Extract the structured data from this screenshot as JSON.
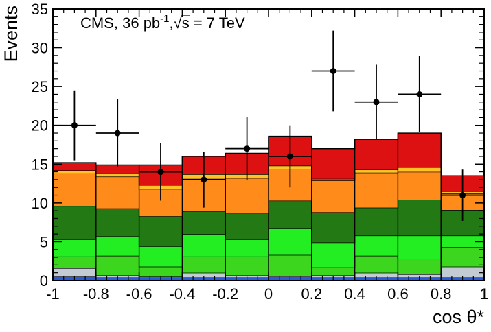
{
  "chart_data": {
    "type": "bar",
    "subtype": "stacked-histogram-with-data-points",
    "xlabel": "cos θ*",
    "ylabel": "Events",
    "annotation": {
      "prefix": "CMS, 36 pb",
      "superscript": "-1",
      "separator": ",",
      "sqrt_symbol": "√",
      "sqrt_arg": "s",
      "suffix": " = 7 TeV"
    },
    "xlim": [
      -1,
      1
    ],
    "ylim": [
      0,
      35
    ],
    "x_ticks": [
      "-1",
      "-0.8",
      "-0.6",
      "-0.4",
      "-0.2",
      "0",
      "0.2",
      "0.4",
      "0.6",
      "0.8",
      "1"
    ],
    "y_ticks": [
      "0",
      "5",
      "10",
      "15",
      "20",
      "25",
      "30",
      "35"
    ],
    "grid": false,
    "bin_edges": [
      -1.0,
      -0.8,
      -0.6,
      -0.4,
      -0.2,
      0.0,
      0.2,
      0.4,
      0.6,
      0.8,
      1.0
    ],
    "series": [
      {
        "color": "#2a5bd7",
        "values": [
          0.5,
          0.4,
          0.4,
          0.4,
          0.4,
          0.5,
          0.4,
          0.4,
          0.4,
          0.4
        ]
      },
      {
        "color": "#c3ccd2",
        "values": [
          1.1,
          0.3,
          0.1,
          0.6,
          0.3,
          0.1,
          0.3,
          0.6,
          0.4,
          1.4
        ]
      },
      {
        "color": "#3dd61f",
        "values": [
          1.5,
          2.5,
          1.3,
          2.1,
          2.4,
          2.7,
          1.0,
          2.2,
          2.0,
          2.5
        ]
      },
      {
        "color": "#22ee22",
        "values": [
          2.2,
          2.5,
          2.6,
          2.9,
          2.2,
          3.4,
          3.2,
          2.6,
          3.0,
          1.5
        ]
      },
      {
        "color": "#237a14",
        "values": [
          4.3,
          3.6,
          3.9,
          2.9,
          3.4,
          3.6,
          3.9,
          3.6,
          4.6,
          3.3
        ]
      },
      {
        "color": "#ff8c1a",
        "values": [
          4.2,
          4.1,
          3.5,
          4.2,
          4.5,
          4.1,
          4.1,
          4.5,
          3.6,
          2.1
        ]
      },
      {
        "color": "#ffc125",
        "values": [
          0.4,
          0.4,
          0.5,
          0.6,
          0.5,
          0.4,
          0.2,
          0.4,
          0.6,
          0.3
        ]
      },
      {
        "color": "#dd1111",
        "values": [
          1.0,
          1.1,
          2.6,
          2.3,
          2.7,
          3.8,
          3.9,
          3.9,
          4.4,
          2.0
        ]
      }
    ],
    "data_points": {
      "x": [
        -0.9,
        -0.7,
        -0.5,
        -0.3,
        -0.1,
        0.1,
        0.3,
        0.5,
        0.7,
        0.9
      ],
      "y": [
        20,
        19,
        14,
        13,
        17,
        16,
        27,
        23,
        24,
        11
      ],
      "err_low": [
        4.5,
        4.4,
        3.7,
        3.6,
        4.1,
        4.0,
        5.2,
        4.8,
        4.9,
        3.3
      ],
      "err_high": [
        4.5,
        4.4,
        3.7,
        3.6,
        4.1,
        4.0,
        5.2,
        4.8,
        4.9,
        3.3
      ]
    }
  }
}
